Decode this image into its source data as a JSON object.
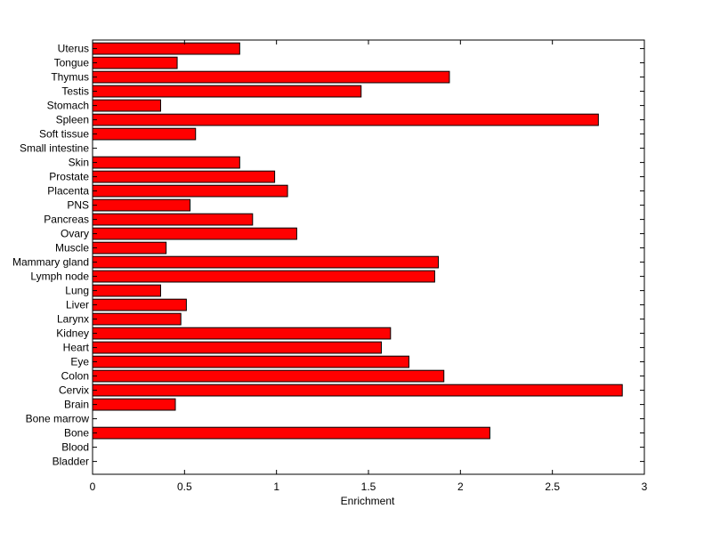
{
  "chart_data": {
    "type": "bar",
    "orientation": "horizontal",
    "title": "",
    "xlabel": "Enrichment",
    "ylabel": "",
    "xlim": [
      0,
      3
    ],
    "xticks": [
      0,
      0.5,
      1,
      1.5,
      2,
      2.5,
      3
    ],
    "xtick_labels": [
      "0",
      "0.5",
      "1",
      "1.5",
      "2",
      "2.5",
      "3"
    ],
    "grid": false,
    "legend": "none",
    "bar_color": "#ff0000",
    "edge_color": "#000000",
    "categories": [
      "Bladder",
      "Blood",
      "Bone",
      "Bone marrow",
      "Brain",
      "Cervix",
      "Colon",
      "Eye",
      "Heart",
      "Kidney",
      "Larynx",
      "Liver",
      "Lung",
      "Lymph node",
      "Mammary gland",
      "Muscle",
      "Ovary",
      "Pancreas",
      "PNS",
      "Placenta",
      "Prostate",
      "Skin",
      "Small intestine",
      "Soft tissue",
      "Spleen",
      "Stomach",
      "Testis",
      "Thymus",
      "Tongue",
      "Uterus"
    ],
    "values": [
      0,
      0,
      2.16,
      0,
      0.45,
      2.88,
      1.91,
      1.72,
      1.57,
      1.62,
      0.48,
      0.51,
      0.37,
      1.86,
      1.88,
      0.4,
      1.11,
      0.87,
      0.53,
      1.06,
      0.99,
      0.8,
      0,
      0.56,
      2.75,
      0.37,
      1.46,
      1.94,
      0.46,
      0.8
    ]
  }
}
